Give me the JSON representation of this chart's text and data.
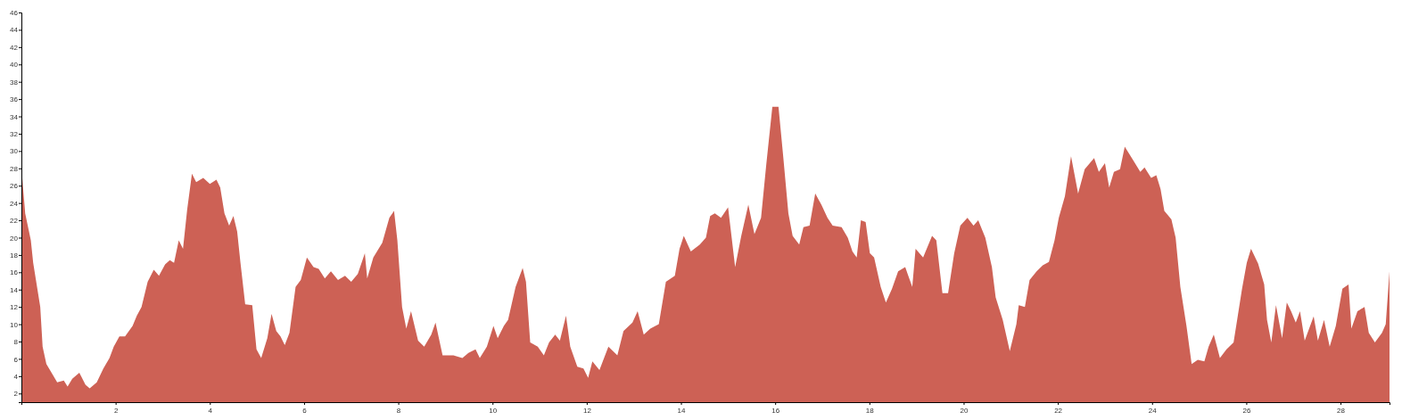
{
  "chart_data": {
    "type": "area",
    "color": "#cd6155",
    "x": [
      0,
      0.08,
      0.2,
      0.25,
      0.4,
      0.45,
      0.53,
      0.64,
      0.76,
      0.9,
      0.98,
      1.08,
      1.23,
      1.36,
      1.45,
      1.6,
      1.74,
      1.87,
      1.96,
      2.08,
      2.2,
      2.36,
      2.45,
      2.55,
      2.68,
      2.81,
      2.92,
      3.05,
      3.15,
      3.24,
      3.34,
      3.43,
      3.52,
      3.62,
      3.71,
      3.86,
      4.0,
      4.14,
      4.22,
      4.31,
      4.41,
      4.5,
      4.58,
      4.65,
      4.75,
      4.9,
      4.99,
      5.09,
      5.22,
      5.31,
      5.41,
      5.5,
      5.59,
      5.69,
      5.82,
      5.93,
      6.06,
      6.2,
      6.31,
      6.44,
      6.57,
      6.72,
      6.87,
      7.0,
      7.14,
      7.29,
      7.34,
      7.47,
      7.66,
      7.81,
      7.91,
      7.98,
      8.08,
      8.17,
      8.27,
      8.42,
      8.55,
      8.7,
      8.79,
      8.94,
      9.17,
      9.36,
      9.49,
      9.64,
      9.73,
      9.88,
      10.02,
      10.11,
      10.24,
      10.33,
      10.49,
      10.64,
      10.71,
      10.8,
      10.96,
      11.09,
      11.2,
      11.33,
      11.43,
      11.56,
      11.65,
      11.8,
      11.93,
      12.03,
      12.12,
      12.27,
      12.46,
      12.65,
      12.78,
      12.97,
      13.08,
      13.21,
      13.35,
      13.53,
      13.68,
      13.87,
      13.97,
      14.06,
      14.21,
      14.4,
      14.53,
      14.62,
      14.72,
      14.85,
      15.0,
      15.15,
      15.28,
      15.43,
      15.56,
      15.7,
      15.81,
      15.94,
      16.07,
      16.17,
      16.28,
      16.37,
      16.51,
      16.6,
      16.73,
      16.85,
      16.98,
      17.11,
      17.22,
      17.41,
      17.54,
      17.64,
      17.73,
      17.82,
      17.92,
      18.01,
      18.1,
      18.24,
      18.35,
      18.48,
      18.61,
      18.76,
      18.91,
      18.98,
      19.14,
      19.33,
      19.42,
      19.55,
      19.67,
      19.8,
      19.93,
      20.08,
      20.21,
      20.31,
      20.46,
      20.6,
      20.68,
      20.83,
      20.98,
      21.12,
      21.17,
      21.3,
      21.4,
      21.55,
      21.68,
      21.81,
      21.93,
      22.02,
      22.15,
      22.28,
      22.43,
      22.57,
      22.77,
      22.87,
      23.0,
      23.09,
      23.19,
      23.32,
      23.42,
      23.57,
      23.75,
      23.84,
      23.98,
      24.09,
      24.18,
      24.26,
      24.41,
      24.5,
      24.6,
      24.73,
      24.84,
      24.97,
      25.11,
      25.2,
      25.31,
      25.44,
      25.58,
      25.73,
      25.82,
      25.91,
      26.01,
      26.1,
      26.25,
      26.38,
      26.44,
      26.53,
      26.63,
      26.76,
      26.86,
      26.95,
      27.05,
      27.14,
      27.24,
      27.43,
      27.52,
      27.65,
      27.77,
      27.9,
      28.04,
      28.17,
      28.23,
      28.36,
      28.51,
      28.6,
      28.73,
      28.88,
      28.96,
      29.04
    ],
    "values": [
      28.1,
      22.8,
      19.7,
      17.1,
      12,
      7.4,
      5.4,
      4.4,
      3.3,
      3.5,
      2.8,
      3.7,
      4.4,
      3,
      2.6,
      3.3,
      4.9,
      6.1,
      7.4,
      8.6,
      8.6,
      9.8,
      11,
      12,
      14.9,
      16.3,
      15.6,
      16.9,
      17.4,
      17.1,
      19.7,
      18.7,
      23.3,
      27.4,
      26.4,
      26.9,
      26.2,
      26.7,
      25.8,
      22.8,
      21.4,
      22.5,
      20.7,
      17.1,
      12.3,
      12.2,
      7.1,
      6.1,
      8.4,
      11.2,
      9.2,
      8.6,
      7.6,
      9,
      14.3,
      15.1,
      17.7,
      16.6,
      16.4,
      15.3,
      16.1,
      15.1,
      15.6,
      14.9,
      15.8,
      18.2,
      15.3,
      17.7,
      19.4,
      22.3,
      23.1,
      19.7,
      12,
      9.5,
      11.5,
      8.1,
      7.4,
      8.8,
      10.2,
      6.4,
      6.4,
      6.1,
      6.7,
      7.1,
      6.1,
      7.4,
      9.8,
      8.4,
      9.8,
      10.5,
      14.3,
      16.5,
      14.9,
      7.9,
      7.4,
      6.4,
      7.9,
      8.8,
      8.1,
      11,
      7.4,
      5.1,
      4.9,
      3.8,
      5.7,
      4.7,
      7.4,
      6.4,
      9.2,
      10.2,
      11.5,
      8.8,
      9.5,
      10,
      14.9,
      15.6,
      18.7,
      20.2,
      18.4,
      19.2,
      20,
      22.5,
      22.8,
      22.3,
      23.5,
      16.6,
      20.2,
      23.8,
      20.4,
      22.3,
      28.4,
      35.1,
      35.1,
      29.4,
      22.8,
      20.2,
      19.2,
      21.2,
      21.4,
      25.1,
      23.8,
      22.3,
      21.4,
      21.2,
      20,
      18.4,
      17.7,
      22,
      21.8,
      18.2,
      17.7,
      14.3,
      12.5,
      14.1,
      16.1,
      16.6,
      14.3,
      18.7,
      17.7,
      20.2,
      19.7,
      13.6,
      13.6,
      18.2,
      21.4,
      22.3,
      21.4,
      22,
      20,
      16.6,
      13.1,
      10.5,
      6.9,
      10,
      12.2,
      12,
      15.1,
      16.1,
      16.8,
      17.2,
      19.7,
      22.3,
      24.8,
      29.4,
      25.1,
      27.9,
      29.2,
      27.6,
      28.6,
      25.8,
      27.6,
      27.9,
      30.5,
      29.2,
      27.6,
      28.1,
      26.9,
      27.2,
      25.6,
      23.1,
      22.1,
      20,
      14.3,
      9.8,
      5.4,
      5.9,
      5.7,
      7.4,
      8.8,
      6.1,
      7.1,
      7.9,
      11,
      14.1,
      17.1,
      18.7,
      17,
      14.6,
      10.5,
      7.9,
      12.2,
      8.4,
      12.5,
      11.5,
      10.2,
      11.5,
      8.1,
      10.9,
      8.1,
      10.5,
      7.4,
      9.8,
      14.1,
      14.6,
      9.5,
      11.5,
      12,
      9,
      7.9,
      9,
      10,
      16.1
    ],
    "xlim": [
      0,
      29.04
    ],
    "ylim": [
      1,
      46
    ],
    "xticks": [
      2,
      4,
      6,
      8,
      10,
      12,
      14,
      16,
      18,
      20,
      22,
      24,
      26,
      28
    ],
    "yticks": [
      2,
      4,
      6,
      8,
      10,
      12,
      14,
      16,
      18,
      20,
      22,
      24,
      26,
      28,
      30,
      32,
      34,
      36,
      38,
      40,
      42,
      44,
      46
    ]
  }
}
